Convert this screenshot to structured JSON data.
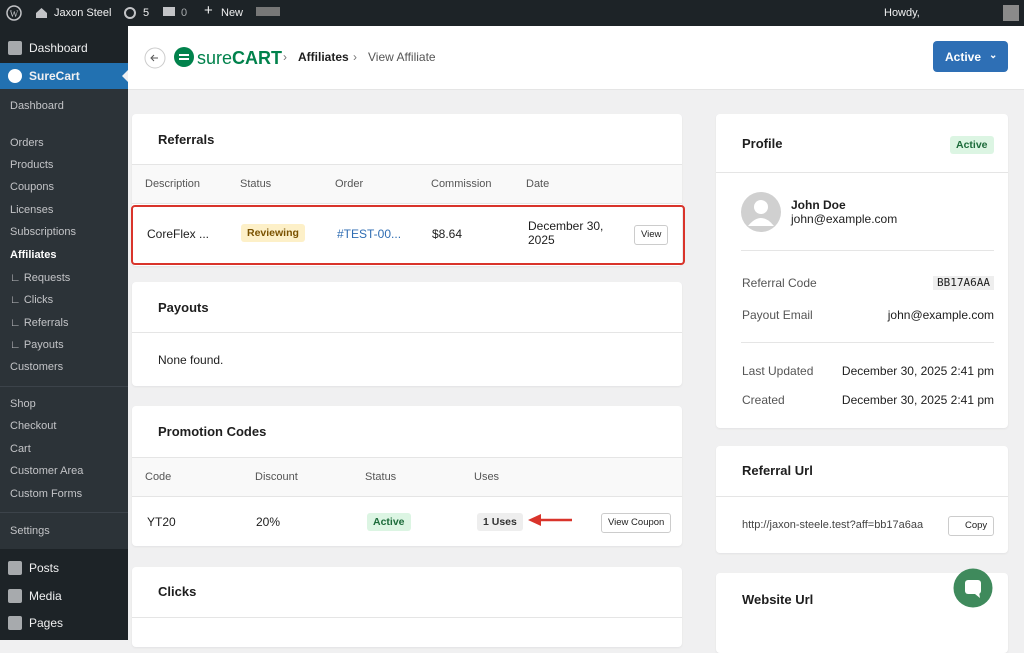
{
  "admin_bar": {
    "site": "Jaxon Steel",
    "updates": "5",
    "comments": "0",
    "new": "New",
    "howdy": "Howdy,"
  },
  "sidebar": {
    "items": [
      "Dashboard",
      "SureCart",
      "Dashboard",
      "Orders",
      "Products",
      "Coupons",
      "Licenses",
      "Subscriptions",
      "Affiliates",
      "∟ Requests",
      "∟ Clicks",
      "∟ Referrals",
      "∟ Payouts",
      "Customers",
      "Shop",
      "Checkout",
      "Cart",
      "Customer Area",
      "Custom Forms",
      "Settings",
      "Posts",
      "Media",
      "Pages"
    ]
  },
  "header": {
    "logo": [
      "sure",
      "CART"
    ],
    "breadcrumb": [
      "Affiliates",
      "View Affiliate"
    ],
    "status_button": "Active"
  },
  "referrals": {
    "title": "Referrals",
    "columns": [
      "Description",
      "Status",
      "Order",
      "Commission",
      "Date"
    ],
    "rows": [
      [
        "CoreFlex ...",
        "Reviewing",
        "#TEST-00...",
        "$8.64",
        "December 30, 2025"
      ]
    ],
    "action": "View"
  },
  "payouts": {
    "title": "Payouts",
    "empty": "None found."
  },
  "promotion_codes": {
    "title": "Promotion Codes",
    "columns": [
      "Code",
      "Discount",
      "Status",
      "Uses"
    ],
    "rows": [
      [
        "YT20",
        "20%",
        "Active",
        "1 Uses"
      ]
    ],
    "action": "View Coupon"
  },
  "clicks": {
    "title": "Clicks"
  },
  "profile": {
    "title": "Profile",
    "status": "Active",
    "name": "John Doe",
    "email": "john@example.com",
    "fields": [
      {
        "label": "Referral Code",
        "value": "BB17A6AA"
      },
      {
        "label": "Payout Email",
        "value": "john@example.com"
      },
      {
        "label": "Last Updated",
        "value": "December 30, 2025 2:41 pm"
      },
      {
        "label": "Created",
        "value": "December 30, 2025 2:41 pm"
      }
    ]
  },
  "referral_url": {
    "title": "Referral Url",
    "url": "http://jaxon-steele.test?aff=bb17a6aa",
    "action": "Copy"
  },
  "website_url": {
    "title": "Website Url"
  }
}
